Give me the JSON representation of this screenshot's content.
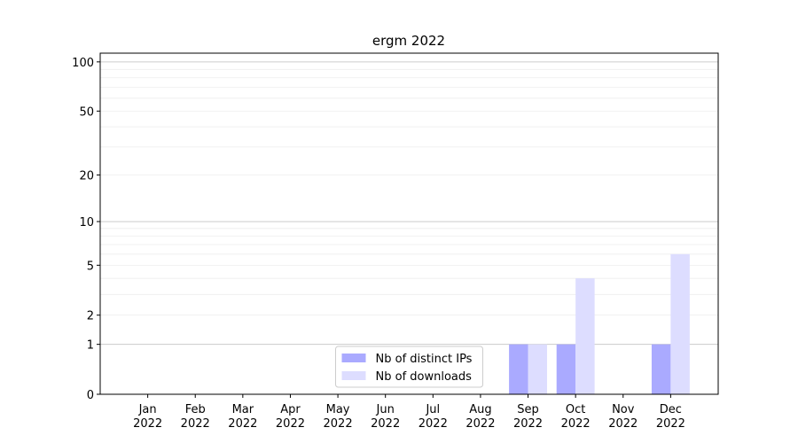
{
  "chart_data": {
    "type": "bar",
    "title": "ergm 2022",
    "categories": [
      "Jan\n2022",
      "Feb\n2022",
      "Mar\n2022",
      "Apr\n2022",
      "May\n2022",
      "Jun\n2022",
      "Jul\n2022",
      "Aug\n2022",
      "Sep\n2022",
      "Oct\n2022",
      "Nov\n2022",
      "Dec\n2022"
    ],
    "series": [
      {
        "name": "Nb of distinct IPs",
        "color": "#aaaaff",
        "values": [
          0,
          0,
          0,
          0,
          0,
          0,
          0,
          0,
          1,
          1,
          0,
          1
        ]
      },
      {
        "name": "Nb of downloads",
        "color": "#ddddff",
        "values": [
          0,
          0,
          0,
          0,
          0,
          0,
          0,
          0,
          1,
          4,
          0,
          6
        ]
      }
    ],
    "yscale": "log1p",
    "ylim": [
      0,
      113
    ],
    "yticks": [
      0,
      1,
      2,
      5,
      10,
      20,
      50,
      100
    ],
    "major_grid": [
      1,
      10,
      100
    ],
    "minor_grid": [
      2,
      3,
      4,
      5,
      6,
      7,
      8,
      9,
      20,
      30,
      40,
      50,
      60,
      70,
      80,
      90
    ],
    "legend": "lower center"
  }
}
